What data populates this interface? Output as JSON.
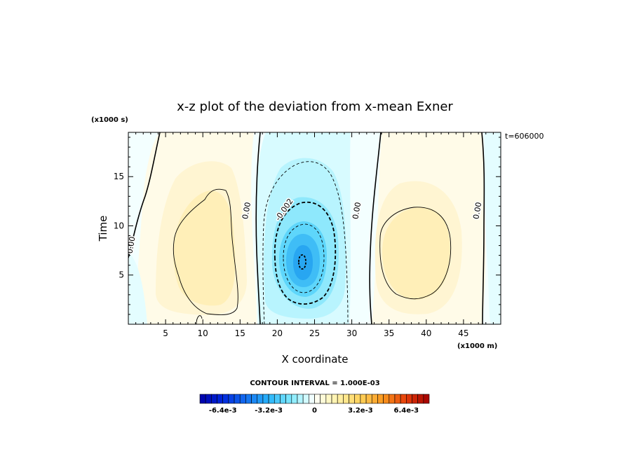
{
  "chart_data": {
    "type": "heatmap",
    "title": "x-z plot of the deviation from x-mean Exner",
    "xlabel": "X coordinate",
    "ylabel": "Time",
    "x_unit_label": "(x1000 m)",
    "y_unit_label": "(x1000 s)",
    "timestamp_label": "t=606000",
    "xlim": [
      0,
      50
    ],
    "ylim": [
      0,
      19.5
    ],
    "x_ticks": [
      5,
      10,
      15,
      20,
      25,
      30,
      35,
      40,
      45
    ],
    "y_ticks": [
      5,
      10,
      15
    ],
    "x_tick_labels": [
      "5",
      "10",
      "15",
      "20",
      "25",
      "30",
      "35",
      "40",
      "45"
    ],
    "y_tick_labels": [
      "5",
      "10",
      "15"
    ],
    "contour_interval_label": "CONTOUR INTERVAL = 1.000E-03",
    "contour_labels": [
      {
        "text": "0.00",
        "x": 0.7,
        "y": 8.0
      },
      {
        "text": "0.00",
        "x": 16.2,
        "y": 11.5
      },
      {
        "text": "-0.002",
        "x": 21.2,
        "y": 11.5
      },
      {
        "text": "0.00",
        "x": 31.0,
        "y": 11.5
      },
      {
        "text": "0.00",
        "x": 47.2,
        "y": 11.5
      }
    ],
    "features": [
      {
        "kind": "positive-max",
        "center": [
          11,
          7
        ],
        "value_approx": 0.0013
      },
      {
        "kind": "negative-min",
        "center": [
          23.2,
          6.8
        ],
        "value_approx": -0.0052
      },
      {
        "kind": "positive-max",
        "center": [
          39,
          7.5
        ],
        "value_approx": 0.0012
      }
    ],
    "colorbar": {
      "min": -0.008,
      "max": 0.008,
      "step": 0.0004,
      "tick_labels": [
        "-6.4e-3",
        "-3.2e-3",
        "0",
        "3.2e-3",
        "6.4e-3"
      ],
      "tick_values": [
        -0.0064,
        -0.0032,
        0,
        0.0032,
        0.0064
      ]
    }
  }
}
